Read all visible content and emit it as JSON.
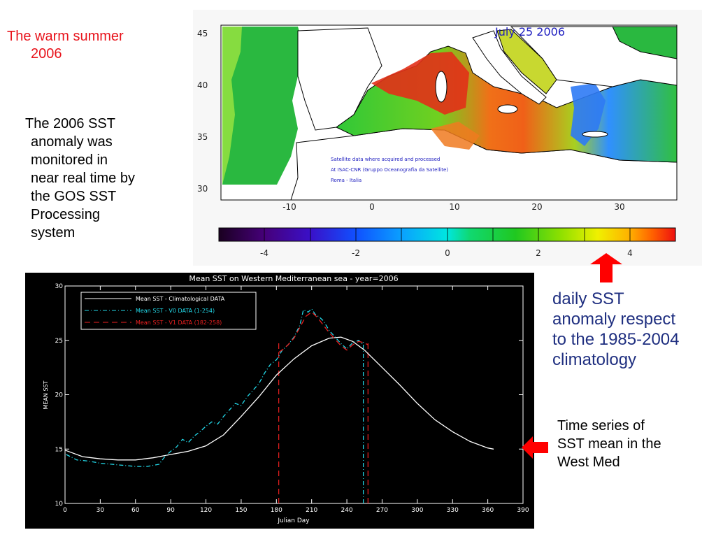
{
  "slide": {
    "title_lines": [
      "The warm summer",
      "2006"
    ],
    "description_lines": [
      "The 2006 SST",
      "anomaly was",
      "monitored  in",
      "near real time by",
      "the GOS SST",
      "Processing",
      "system"
    ],
    "anomaly_note_lines": [
      "daily SST",
      "anomaly respect",
      "to the 1985-2004",
      "climatology"
    ],
    "timeseries_note_lines": [
      "Time series of",
      "SST mean in the",
      "West Med"
    ]
  },
  "map": {
    "date_label": "July 25 2006",
    "credit_lines": [
      "Satellite data where acquired and processed",
      "At ISAC-CNR (Gruppo Oceanografia da Satellite)",
      "Roma - Italia"
    ],
    "lat_ticks": [
      "45",
      "40",
      "35",
      "30"
    ],
    "lon_ticks": [
      "-10",
      "0",
      "10",
      "20",
      "30"
    ],
    "colorbar_ticks": [
      "-4",
      "-2",
      "0",
      "2",
      "4"
    ],
    "colorbar_colors": [
      "#1a0020",
      "#46007a",
      "#3a10c8",
      "#1050ff",
      "#0aa0ff",
      "#00e6e0",
      "#10d870",
      "#20c820",
      "#90e000",
      "#f0f000",
      "#ffb000",
      "#ff6000",
      "#ee1010"
    ]
  },
  "chart_data": {
    "type": "line",
    "title": "Mean SST on Western Mediterranean sea - year=2006",
    "xlabel": "Julian Day",
    "ylabel": "MEAN SST",
    "xlim": [
      0,
      390
    ],
    "ylim": [
      10,
      30
    ],
    "xticks": [
      "0",
      "30",
      "60",
      "90",
      "120",
      "150",
      "180",
      "210",
      "240",
      "270",
      "300",
      "330",
      "360",
      "390"
    ],
    "yticks": [
      "10",
      "15",
      "20",
      "25",
      "30"
    ],
    "legend_placement": "top-left",
    "series": [
      {
        "name": "Mean SST - Climatological DATA",
        "color": "#ffffff",
        "style": "solid",
        "x": [
          0,
          15,
          30,
          45,
          60,
          75,
          90,
          105,
          120,
          135,
          150,
          165,
          180,
          195,
          210,
          225,
          235,
          245,
          255,
          270,
          285,
          300,
          315,
          330,
          345,
          360,
          365
        ],
        "y": [
          14.9,
          14.3,
          14.1,
          14.0,
          14.0,
          14.2,
          14.5,
          14.8,
          15.3,
          16.3,
          18.0,
          19.8,
          21.8,
          23.3,
          24.5,
          25.2,
          25.3,
          24.9,
          24.1,
          22.5,
          20.9,
          19.2,
          17.7,
          16.6,
          15.7,
          15.1,
          15.0
        ]
      },
      {
        "name": "Mean SST - V0 DATA (1-254)",
        "color": "#22d8e8",
        "style": "dash-dot",
        "x": [
          1,
          10,
          20,
          30,
          40,
          50,
          60,
          70,
          80,
          85,
          90,
          95,
          100,
          105,
          110,
          115,
          120,
          125,
          130,
          135,
          140,
          145,
          150,
          155,
          160,
          165,
          170,
          175,
          180,
          185,
          190,
          195,
          200,
          203,
          207,
          210,
          213,
          217,
          220,
          225,
          230,
          235,
          240,
          245,
          250,
          254
        ],
        "y": [
          14.5,
          14.0,
          13.9,
          13.7,
          13.6,
          13.5,
          13.4,
          13.4,
          13.6,
          14.3,
          14.8,
          15.2,
          15.9,
          15.6,
          16.2,
          16.6,
          17.1,
          17.5,
          17.3,
          18.0,
          18.6,
          19.2,
          19.0,
          19.8,
          20.4,
          21.0,
          22.0,
          22.8,
          23.2,
          24.1,
          24.6,
          25.3,
          26.4,
          27.8,
          27.6,
          27.9,
          27.4,
          27.1,
          26.8,
          25.9,
          25.3,
          24.7,
          24.2,
          24.8,
          25.0,
          24.6
        ]
      },
      {
        "name": "Mean SST - V1 DATA (182-258)",
        "color": "#ee2020",
        "style": "dashed",
        "x": [
          182,
          186,
          190,
          195,
          200,
          205,
          210,
          215,
          220,
          225,
          230,
          235,
          240,
          245,
          250,
          254,
          258
        ],
        "y": [
          23.9,
          24.2,
          24.6,
          25.2,
          26.2,
          27.2,
          27.6,
          27.1,
          26.4,
          25.7,
          25.1,
          24.5,
          24.1,
          24.6,
          24.9,
          24.8,
          24.6
        ]
      }
    ],
    "markers": [
      {
        "name": "V1 start",
        "x": 182,
        "color": "#ee2020",
        "style": "dashed"
      },
      {
        "name": "V0 end",
        "x": 254,
        "color": "#22d8e8",
        "style": "dash-dot"
      },
      {
        "name": "V1 end",
        "x": 258,
        "color": "#ee2020",
        "style": "dashed"
      }
    ]
  },
  "pointers": {
    "up_arrow_color": "#ff0000",
    "left_arrow_color": "#ff0000"
  }
}
